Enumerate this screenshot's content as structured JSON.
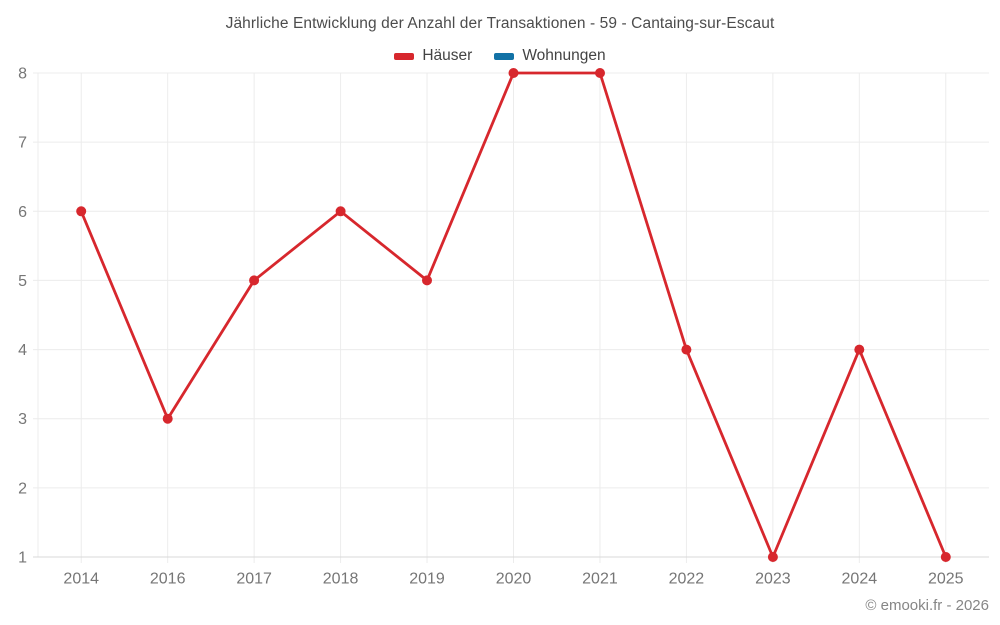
{
  "footer": "© emooki.fr - 2026",
  "chart_data": {
    "type": "line",
    "title": "Jährliche Entwicklung der Anzahl der Transaktionen - 59 - Cantaing-sur-Escaut",
    "categories": [
      "2014",
      "2016",
      "2017",
      "2018",
      "2019",
      "2020",
      "2021",
      "2022",
      "2023",
      "2024",
      "2025"
    ],
    "series": [
      {
        "name": "Häuser",
        "color": "#d7272d",
        "values": [
          6,
          3,
          5,
          6,
          5,
          8,
          8,
          4,
          1,
          4,
          1
        ]
      },
      {
        "name": "Wohnungen",
        "color": "#1272a6",
        "values": []
      }
    ],
    "xlabel": "",
    "ylabel": "",
    "ylim": [
      1,
      8
    ],
    "yticks": [
      1,
      2,
      3,
      4,
      5,
      6,
      7,
      8
    ],
    "grid": true,
    "legend_position": "top",
    "grid_color": "#ececec",
    "axis_line_color": "#d9d9d9",
    "tick_label_color": "#767676"
  }
}
